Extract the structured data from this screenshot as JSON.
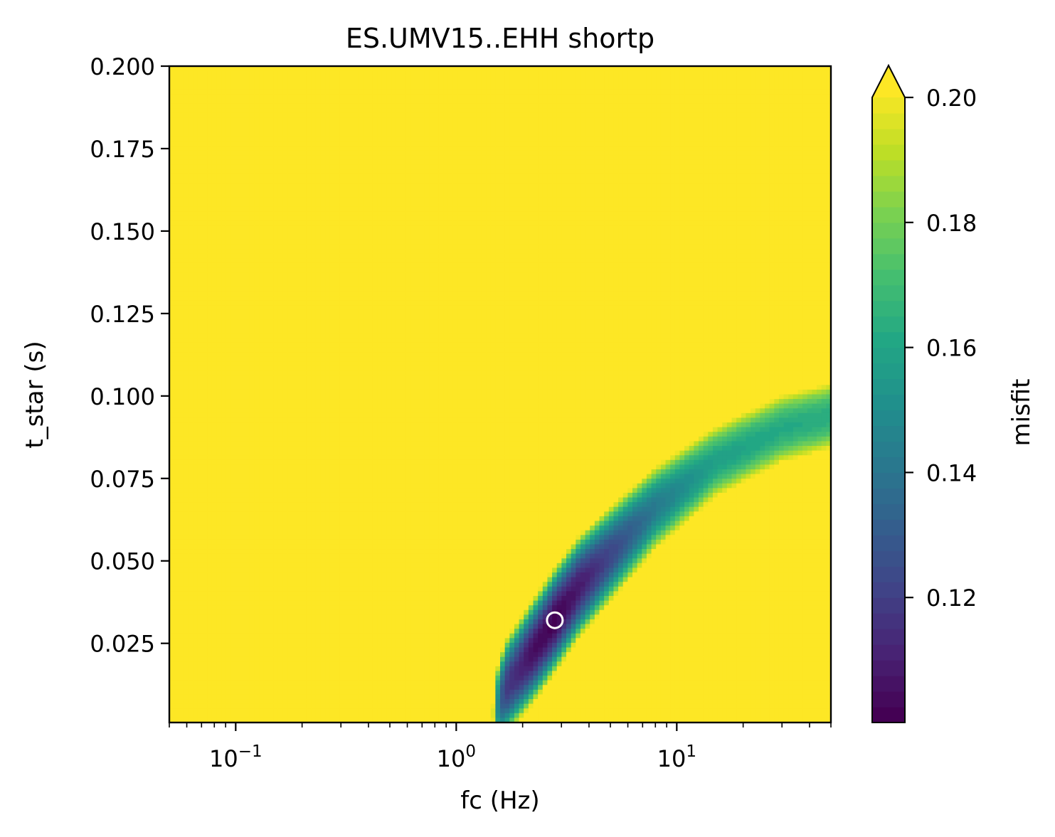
{
  "chart_data": {
    "type": "heatmap",
    "title": "ES.UMV15..EHH shortp",
    "xlabel": "fc (Hz)",
    "ylabel": "t_star (s)",
    "x_scale": "log",
    "xlim": [
      0.05,
      50
    ],
    "ylim": [
      0.001,
      0.2
    ],
    "x_major_ticks": [
      {
        "value": 0.1,
        "base": "10",
        "exp": "−1"
      },
      {
        "value": 1,
        "base": "10",
        "exp": "0"
      },
      {
        "value": 10,
        "base": "10",
        "exp": "1"
      }
    ],
    "y_ticks": [
      {
        "value": 0.025,
        "label": "0.025"
      },
      {
        "value": 0.05,
        "label": "0.050"
      },
      {
        "value": 0.075,
        "label": "0.075"
      },
      {
        "value": 0.1,
        "label": "0.100"
      },
      {
        "value": 0.125,
        "label": "0.125"
      },
      {
        "value": 0.15,
        "label": "0.150"
      },
      {
        "value": 0.175,
        "label": "0.175"
      },
      {
        "value": 0.2,
        "label": "0.200"
      }
    ],
    "grid": false,
    "colormap": "viridis",
    "colorbar": {
      "label": "misfit",
      "vmin": 0.1,
      "vmax": 0.2,
      "extend": "max",
      "ticks": [
        {
          "value": 0.12,
          "label": "0.12"
        },
        {
          "value": 0.14,
          "label": "0.14"
        },
        {
          "value": 0.16,
          "label": "0.16"
        },
        {
          "value": 0.18,
          "label": "0.18"
        },
        {
          "value": 0.2,
          "label": "0.20"
        }
      ]
    },
    "valley_ridge": [
      {
        "fc": 1.4,
        "t_star": 0.001,
        "misfit": 0.158
      },
      {
        "fc": 1.7,
        "t_star": 0.012,
        "misfit": 0.118
      },
      {
        "fc": 2.2,
        "t_star": 0.022,
        "misfit": 0.105
      },
      {
        "fc": 2.8,
        "t_star": 0.032,
        "misfit": 0.101
      },
      {
        "fc": 3.6,
        "t_star": 0.042,
        "misfit": 0.108
      },
      {
        "fc": 5.0,
        "t_star": 0.052,
        "misfit": 0.122
      },
      {
        "fc": 8.0,
        "t_star": 0.066,
        "misfit": 0.142
      },
      {
        "fc": 15.0,
        "t_star": 0.08,
        "misfit": 0.158
      },
      {
        "fc": 30.0,
        "t_star": 0.09,
        "misfit": 0.162
      },
      {
        "fc": 50.0,
        "t_star": 0.094,
        "misfit": 0.163
      }
    ],
    "best_fit": {
      "fc": 2.8,
      "t_star": 0.032
    }
  }
}
